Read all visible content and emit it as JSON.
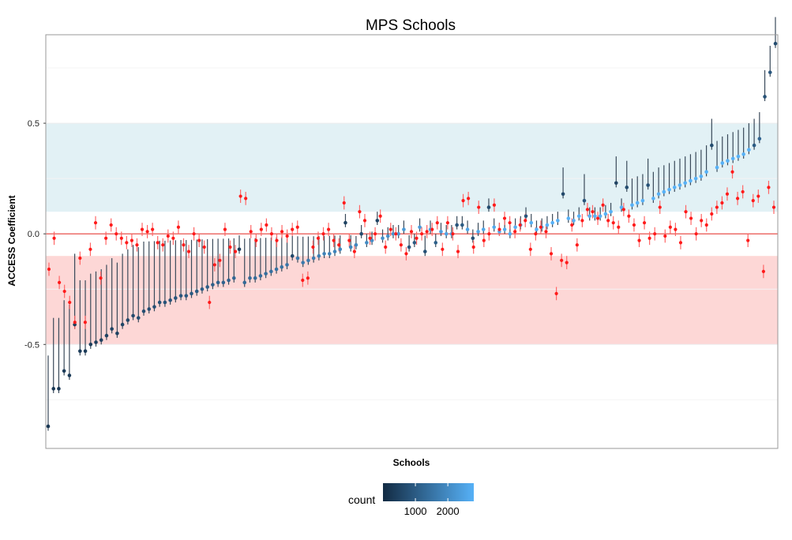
{
  "chart_data": {
    "type": "scatter",
    "title": "MPS Schools",
    "xlabel": "Schools",
    "ylabel": "ACCESS Coefficient",
    "ylim": [
      -0.97,
      0.9
    ],
    "yticks": [
      -0.5,
      0.0,
      0.5
    ],
    "ytick_labels": [
      "-0.5",
      "0.0",
      "0.5"
    ],
    "x_tick_labels": false,
    "grid": true,
    "reference_line": {
      "y": 0.0,
      "color": "#e8403a"
    },
    "bands": [
      {
        "ymin": 0.1,
        "ymax": 0.5,
        "color": "#e2f1f5"
      },
      {
        "ymin": -0.5,
        "ymax": -0.1,
        "color": "#fdd7d6"
      }
    ],
    "legend": {
      "title": "count",
      "placement": "bottom",
      "scale_min": 0,
      "scale_max": 2800,
      "ticks": [
        1000,
        2000
      ],
      "tick_labels": [
        "1000",
        "2000"
      ],
      "color_low": "#132b43",
      "color_high": "#56b1f7"
    },
    "colors": {
      "red_series": "#ff1a1a",
      "panel_border": "#9a9a9a"
    },
    "series": [
      {
        "values": [
          -0.87,
          -0.7,
          -0.7,
          -0.62,
          -0.64,
          -0.41,
          -0.53,
          -0.53,
          -0.5,
          -0.49,
          -0.48,
          -0.46,
          -0.43,
          -0.45,
          -0.41,
          -0.39,
          -0.37,
          -0.38,
          -0.35,
          -0.34,
          -0.33,
          -0.31,
          -0.31,
          -0.3,
          -0.29,
          -0.28,
          -0.28,
          -0.27,
          -0.26,
          -0.25,
          -0.24,
          -0.23,
          -0.22,
          -0.22,
          -0.21,
          -0.2,
          -0.07,
          -0.22,
          -0.2,
          -0.2,
          -0.19,
          -0.18,
          -0.17,
          -0.16,
          -0.15,
          -0.14,
          -0.1,
          -0.11,
          -0.13,
          -0.12,
          -0.11,
          -0.1,
          -0.09,
          -0.09,
          -0.08,
          -0.07,
          0.05,
          -0.06,
          -0.05,
          0.0,
          -0.04,
          -0.03,
          0.06,
          -0.02,
          -0.01,
          0.0,
          0.0,
          0.02,
          -0.06,
          -0.04,
          0.03,
          -0.08,
          0.02,
          -0.04,
          0.01,
          0.0,
          0.0,
          0.04,
          0.04,
          0.02,
          -0.02,
          0.01,
          0.02,
          0.12,
          0.03,
          0.01,
          0.02,
          0.0,
          0.03,
          0.04,
          0.08,
          0.05,
          0.02,
          0.03,
          0.04,
          0.05,
          0.06,
          0.18,
          0.07,
          0.06,
          0.08,
          0.15,
          0.08,
          0.08,
          0.08,
          0.09,
          0.1,
          0.23,
          0.12,
          0.21,
          0.13,
          0.14,
          0.15,
          0.22,
          0.16,
          0.18,
          0.19,
          0.2,
          0.21,
          0.22,
          0.23,
          0.24,
          0.25,
          0.26,
          0.28,
          0.4,
          0.3,
          0.32,
          0.33,
          0.34,
          0.35,
          0.36,
          0.38,
          0.4,
          0.43,
          0.62,
          0.73,
          0.86
        ],
        "counts": [
          250,
          300,
          280,
          320,
          310,
          400,
          350,
          360,
          380,
          420,
          450,
          500,
          520,
          480,
          560,
          600,
          650,
          700,
          720,
          740,
          760,
          800,
          820,
          850,
          880,
          900,
          950,
          980,
          1000,
          1050,
          1080,
          1100,
          1150,
          1180,
          1200,
          1250,
          400,
          1300,
          1320,
          1350,
          1380,
          1400,
          1450,
          1480,
          1500,
          1550,
          600,
          1600,
          1650,
          1700,
          1720,
          1750,
          1800,
          1820,
          1850,
          1880,
          500,
          1900,
          1950,
          700,
          2000,
          2050,
          500,
          2100,
          2150,
          2200,
          2250,
          2300,
          900,
          1000,
          2350,
          800,
          2400,
          1100,
          2450,
          2500,
          2500,
          900,
          1000,
          2550,
          800,
          2600,
          2600,
          700,
          2650,
          2700,
          2700,
          2700,
          2750,
          2750,
          900,
          2750,
          2800,
          2800,
          2800,
          2800,
          2800,
          600,
          2800,
          2800,
          2800,
          900,
          2800,
          2800,
          2800,
          2800,
          2800,
          500,
          2800,
          700,
          2800,
          2800,
          2800,
          800,
          2800,
          2800,
          2800,
          2800,
          2800,
          2800,
          2800,
          2800,
          2800,
          2800,
          2800,
          700,
          2800,
          2800,
          2800,
          2800,
          2800,
          2800,
          2800,
          1000,
          1200,
          800,
          900,
          700
        ]
      },
      {
        "values": [
          -0.16,
          -0.02,
          -0.22,
          -0.26,
          -0.31,
          -0.4,
          -0.11,
          -0.4,
          -0.07,
          0.05,
          -0.2,
          -0.02,
          0.04,
          0.0,
          -0.02,
          -0.04,
          -0.03,
          -0.05,
          0.02,
          0.01,
          0.02,
          -0.04,
          -0.05,
          -0.01,
          -0.02,
          0.03,
          -0.05,
          -0.08,
          0.0,
          -0.03,
          -0.06,
          -0.31,
          -0.14,
          -0.12,
          0.02,
          -0.06,
          -0.08,
          0.17,
          0.16,
          0.01,
          -0.03,
          0.02,
          0.04,
          0.0,
          -0.03,
          0.01,
          -0.01,
          0.02,
          0.03,
          -0.21,
          -0.2,
          -0.06,
          -0.02,
          0.0,
          0.02,
          -0.03,
          -0.05,
          0.14,
          -0.03,
          -0.08,
          0.1,
          0.06,
          -0.02,
          0.0,
          0.08,
          -0.06,
          0.02,
          0.0,
          -0.05,
          -0.09,
          0.01,
          -0.02,
          0.0,
          0.01,
          0.02,
          0.05,
          -0.07,
          0.05,
          0.0,
          -0.08,
          0.15,
          0.16,
          -0.06,
          0.12,
          -0.03,
          0.0,
          0.13,
          0.02,
          0.07,
          0.05,
          0.01,
          0.04,
          0.06,
          -0.07,
          0.0,
          0.03,
          0.01,
          -0.09,
          -0.27,
          -0.12,
          -0.13,
          0.04,
          -0.05,
          0.06,
          0.11,
          0.1,
          0.07,
          0.13,
          0.06,
          0.05,
          0.03,
          0.11,
          0.08,
          0.04,
          -0.03,
          0.05,
          -0.02,
          0.0,
          0.12,
          -0.01,
          0.03,
          0.02,
          -0.04,
          0.1,
          0.07,
          0.0,
          0.06,
          0.04,
          0.09,
          0.12,
          0.14,
          0.18,
          0.28,
          0.16,
          0.19,
          -0.03,
          0.15,
          0.17,
          -0.17,
          0.21,
          0.12
        ],
        "error": 0.03
      }
    ]
  }
}
